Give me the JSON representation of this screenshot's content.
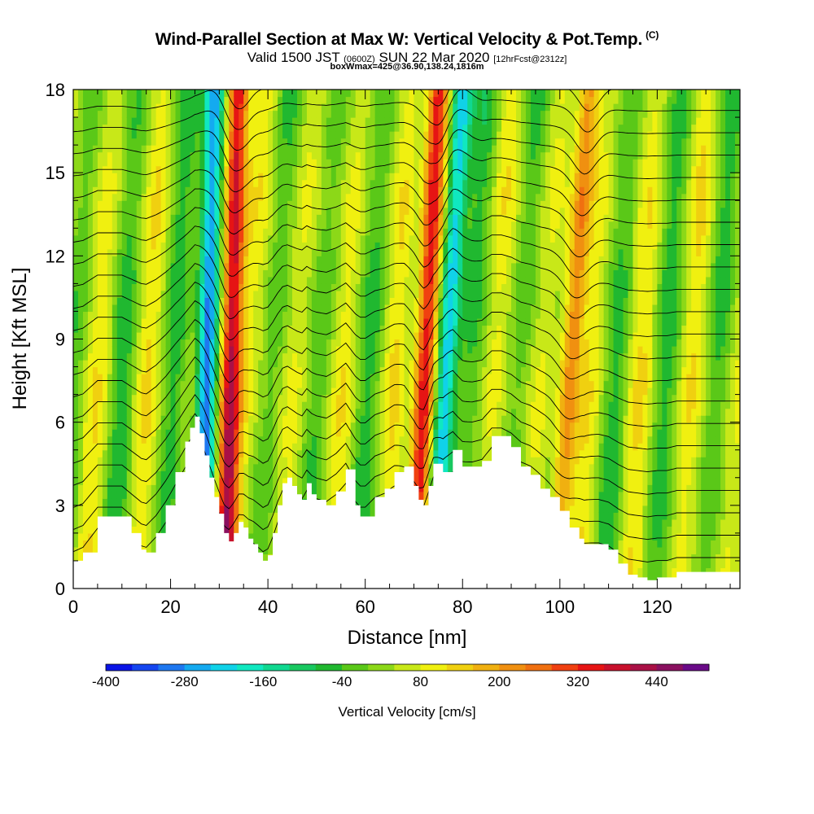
{
  "header": {
    "title": "Wind-Parallel Section at Max W: Vertical Velocity & Pot.Temp.",
    "title_mark": "(C)",
    "valid_prefix": "Valid 1500 JST",
    "valid_utc": "(0600Z)",
    "valid_date": "SUN 22 Mar 2020",
    "forecast": "[12hrFcst@2312z]",
    "box_info": "boxWmax=425@36.90,138.24,1816m"
  },
  "chart_data": {
    "type": "heatmap",
    "xlabel": "Distance [nm]",
    "ylabel": "Height [Kft MSL]",
    "xlim": [
      0,
      137
    ],
    "ylim": [
      0,
      18
    ],
    "x_ticks": [
      0,
      20,
      40,
      60,
      80,
      100,
      120
    ],
    "y_ticks": [
      0,
      3,
      6,
      9,
      12,
      15,
      18
    ],
    "colorbar": {
      "title": "Vertical Velocity [cm/s]",
      "tick_labels": [
        "-400",
        "-280",
        "-160",
        "-40",
        "80",
        "200",
        "320",
        "440"
      ],
      "tick_values": [
        -400,
        -280,
        -160,
        -40,
        80,
        200,
        320,
        440
      ],
      "range": [
        -400,
        520
      ],
      "colors": [
        "#0a14e6",
        "#1546f0",
        "#1e78f0",
        "#14aaf0",
        "#10d2e8",
        "#10e8c0",
        "#10d890",
        "#18c860",
        "#20b830",
        "#5ac818",
        "#8cd818",
        "#c8e818",
        "#f0f010",
        "#f0d010",
        "#f0b010",
        "#f09010",
        "#f07010",
        "#f04010",
        "#e61414",
        "#c8102c",
        "#aa1046",
        "#8a1060",
        "#6a0a88"
      ]
    },
    "terrain_profile": {
      "x": [
        0,
        2,
        5,
        7,
        10,
        12,
        14,
        15,
        17,
        19,
        21,
        23,
        24,
        25,
        26,
        27,
        28,
        29,
        30,
        31,
        32,
        33,
        34,
        35,
        36,
        37,
        38,
        39,
        40,
        41,
        42,
        43,
        44,
        45,
        46,
        47,
        48,
        49,
        50,
        52,
        54,
        56,
        58,
        59,
        60,
        62,
        64,
        66,
        68,
        70,
        71,
        72,
        73,
        74,
        76,
        78,
        80,
        82,
        84,
        86,
        88,
        90,
        92,
        94,
        96,
        98,
        100,
        102,
        104,
        105,
        106,
        107,
        108,
        110,
        112,
        114,
        116,
        118,
        120,
        122,
        124,
        126,
        128,
        130,
        132,
        134,
        137
      ],
      "height_kft": [
        1.0,
        1.3,
        2.6,
        2.6,
        2.6,
        2.0,
        1.4,
        1.3,
        2.0,
        3.0,
        4.2,
        5.3,
        5.8,
        6.2,
        5.6,
        4.8,
        4.0,
        3.3,
        2.7,
        2.0,
        1.7,
        2.0,
        2.4,
        2.2,
        1.8,
        1.6,
        1.3,
        1.0,
        1.2,
        2.0,
        3.0,
        3.8,
        4.0,
        3.7,
        3.4,
        3.2,
        3.8,
        3.4,
        3.2,
        3.0,
        3.5,
        4.3,
        3.0,
        2.6,
        2.6,
        3.3,
        3.6,
        4.2,
        4.4,
        3.7,
        3.2,
        3.0,
        3.7,
        4.5,
        4.2,
        5.0,
        4.4,
        4.4,
        4.6,
        5.5,
        5.5,
        5.1,
        4.4,
        4.1,
        3.6,
        3.3,
        2.8,
        2.2,
        1.8,
        1.6,
        1.6,
        1.6,
        1.6,
        1.4,
        0.9,
        0.5,
        0.4,
        0.3,
        0.4,
        0.4,
        0.6,
        0.6,
        0.6,
        0.6,
        0.6,
        0.6,
        0.6
      ]
    },
    "updraft_bands": [
      {
        "x_top": 34,
        "x_bottom": 31,
        "w_peak": 425,
        "sign": "up"
      },
      {
        "x_top": 29,
        "x_bottom": 26,
        "w_peak": -380,
        "sign": "down"
      },
      {
        "x_top": 75,
        "x_bottom": 70,
        "w_peak": 400,
        "sign": "up"
      },
      {
        "x_top": 80,
        "x_bottom": 74,
        "w_peak": -340,
        "sign": "down"
      },
      {
        "x_top": 106,
        "x_bottom": 99,
        "w_peak": 240,
        "sign": "up"
      }
    ]
  }
}
